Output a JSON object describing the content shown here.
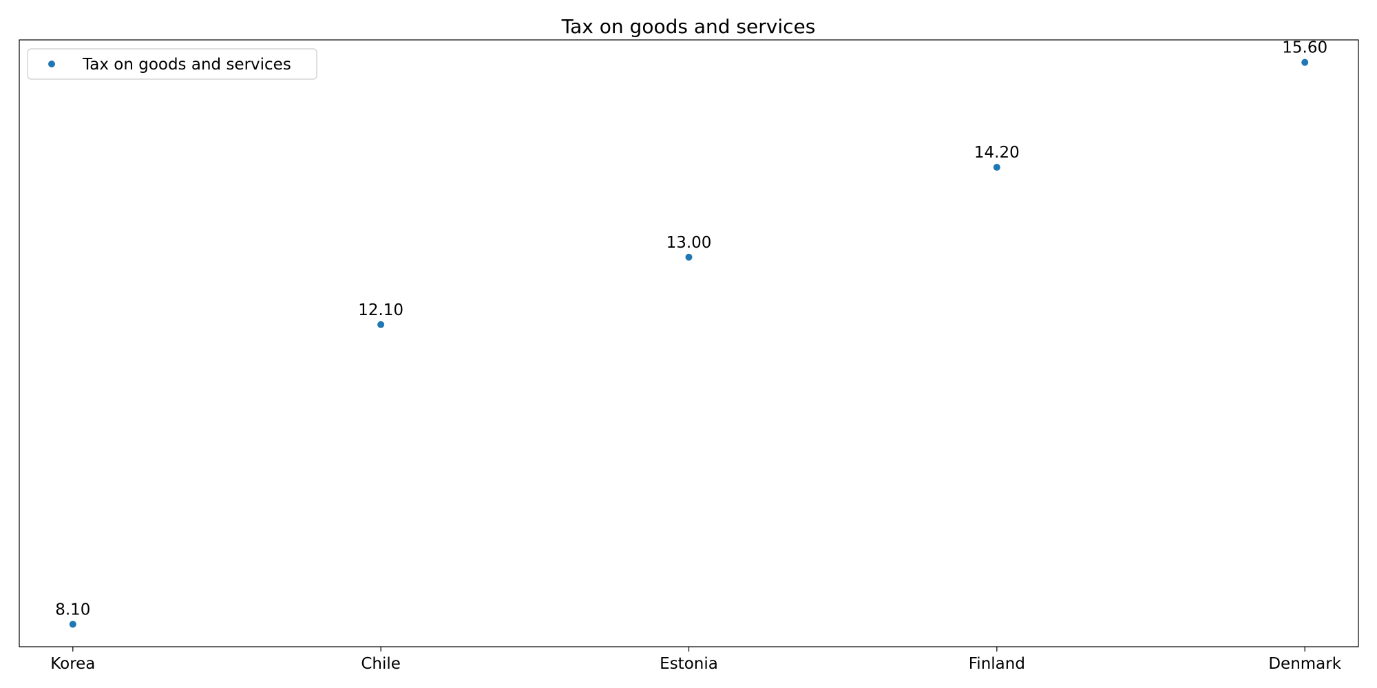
{
  "chart_data": {
    "type": "scatter",
    "title": "Tax on goods and services",
    "categories": [
      "Korea",
      "Chile",
      "Estonia",
      "Finland",
      "Denmark"
    ],
    "series": [
      {
        "name": "Tax on goods and services",
        "values": [
          8.1,
          12.1,
          13.0,
          14.2,
          15.6
        ],
        "labels": [
          "8.10",
          "12.10",
          "13.00",
          "14.20",
          "15.60"
        ]
      }
    ],
    "xlabel": "",
    "ylabel": "",
    "ylim": [
      7.8,
      15.9
    ],
    "y_ticks_visible": false,
    "grid": false,
    "legend_position": "upper-left",
    "colors": {
      "series": "#1f77b4",
      "axis": "#000000",
      "legend_border": "#cccccc"
    }
  }
}
